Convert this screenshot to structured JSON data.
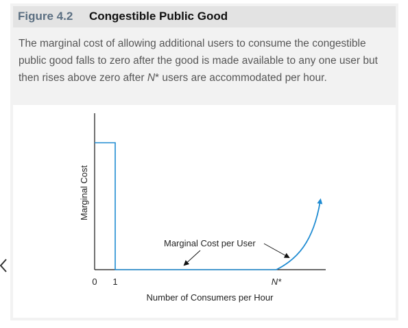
{
  "figure": {
    "number": "Figure 4.2",
    "title": "Congestible Public Good",
    "caption_pre": "The marginal cost of allowing additional users to consume the congestible public good falls to zero after the good is made available to any one user but then rises above zero after ",
    "caption_sym": "N",
    "caption_post": "* users are accommodated per hour."
  },
  "chart_data": {
    "type": "line",
    "title": "",
    "xlabel": "Number of Consumers per Hour",
    "ylabel": "Marginal Cost",
    "x_ticks": [
      "0",
      "1",
      "N*"
    ],
    "series": [
      {
        "name": "Marginal Cost per User",
        "points": [
          {
            "x": 0,
            "y": 1.0
          },
          {
            "x": 1,
            "y": 1.0
          },
          {
            "x": 1,
            "y": 0
          },
          {
            "x": "N*",
            "y": 0
          },
          {
            "x": "beyond N*",
            "y": 0.5
          }
        ]
      }
    ],
    "annotation": "Marginal Cost per User",
    "grid": false,
    "colors": {
      "curve": "#1e8bd2",
      "axes": "#111111",
      "text": "#222222"
    }
  },
  "nav": {
    "prev_icon": "chevron-left-icon"
  }
}
